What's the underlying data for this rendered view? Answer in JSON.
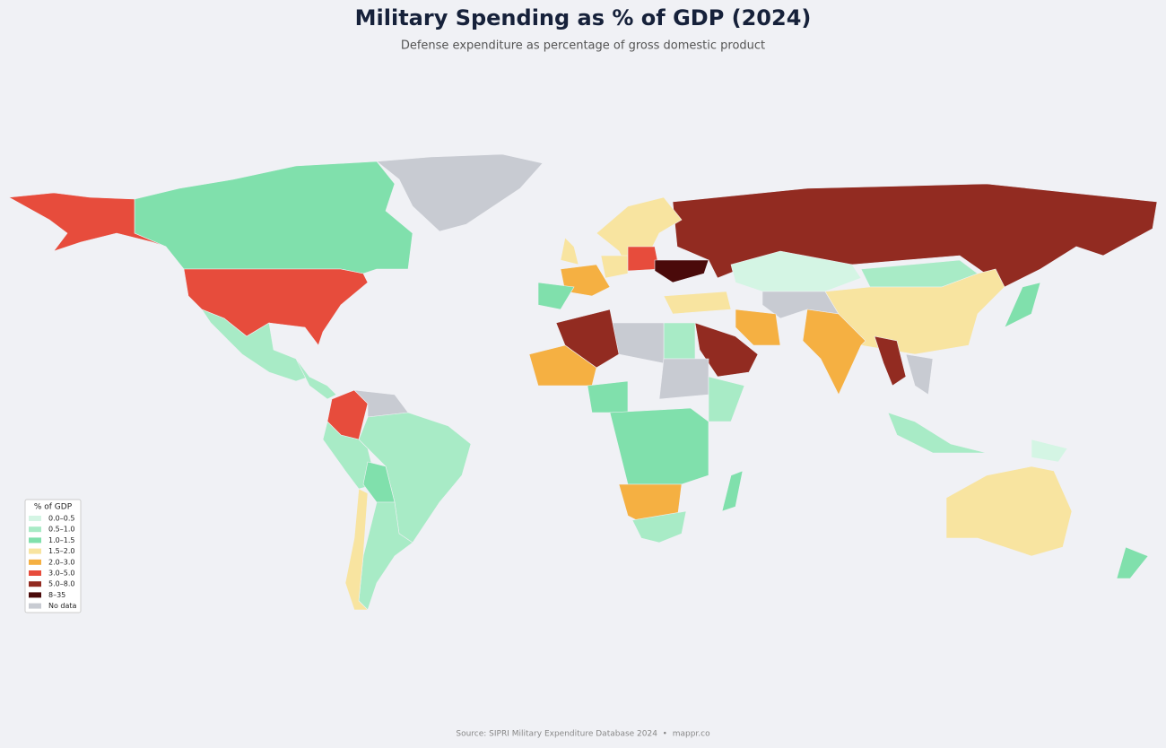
{
  "title": "Military Spending as % of GDP (2024)",
  "subtitle": "Defense expenditure as percentage of gross domestic product",
  "legend": {
    "title": "% of GDP",
    "items": [
      {
        "label": "0.0–0.5",
        "color": "#d4f5e4"
      },
      {
        "label": "0.5–1.0",
        "color": "#a8ebc6"
      },
      {
        "label": "1.0–1.5",
        "color": "#80e0ac"
      },
      {
        "label": "1.5–2.0",
        "color": "#f8e4a0"
      },
      {
        "label": "2.0–3.0",
        "color": "#f5b042"
      },
      {
        "label": "3.0–5.0",
        "color": "#e74c3c"
      },
      {
        "label": "5.0–8.0",
        "color": "#922b21"
      },
      {
        "label": "8–35",
        "color": "#4a0a0a"
      },
      {
        "label": "No data",
        "color": "#c8cbd2"
      }
    ]
  },
  "source": "Source: SIPRI Military Expenditure Database 2024  •  mappr.co"
}
